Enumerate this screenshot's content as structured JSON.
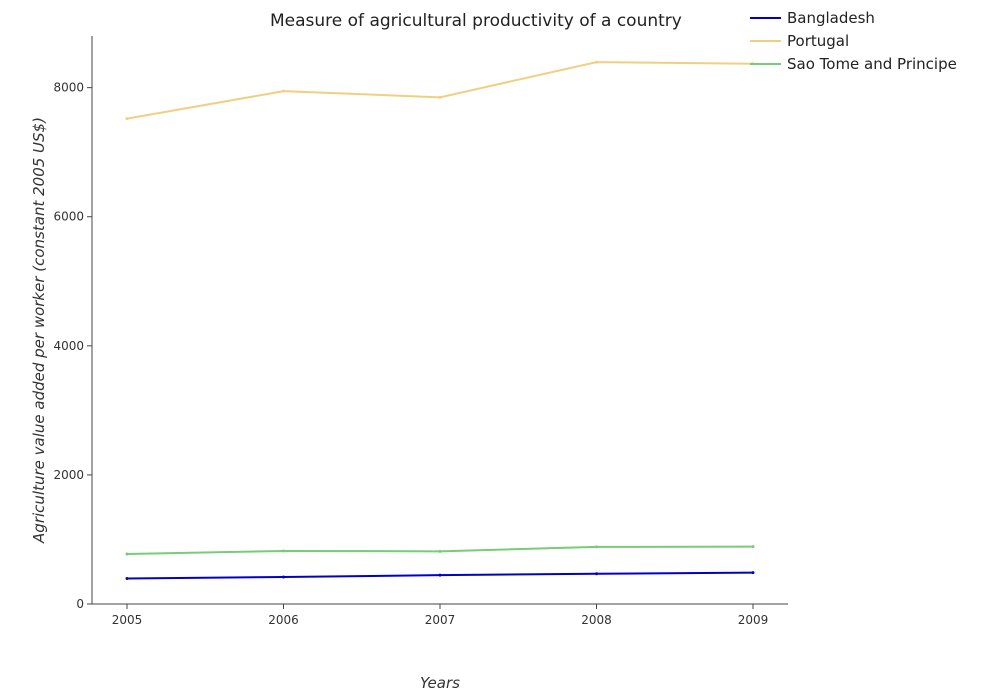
{
  "chart_data": {
    "type": "line",
    "title": "Measure of agricultural productivity of a country",
    "xlabel": "Years",
    "ylabel": "Agriculture value added per worker (constant 2005 US$)",
    "x": [
      "2005",
      "2006",
      "2007",
      "2008",
      "2009"
    ],
    "ylim": [
      0,
      8800
    ],
    "yticks": [
      "0",
      "2000",
      "4000",
      "6000",
      "8000"
    ],
    "grid": false,
    "legend_position": "top-right",
    "series": [
      {
        "name": "Bangladesh",
        "color": "#0000cc",
        "values": [
          395,
          418,
          447,
          468,
          486
        ]
      },
      {
        "name": "Portugal",
        "color": "#f0d080",
        "values": [
          7520,
          7945,
          7850,
          8395,
          8370
        ]
      },
      {
        "name": "Sao Tome and Principe",
        "color": "#77cc77",
        "values": [
          775,
          822,
          816,
          885,
          888
        ]
      }
    ]
  }
}
